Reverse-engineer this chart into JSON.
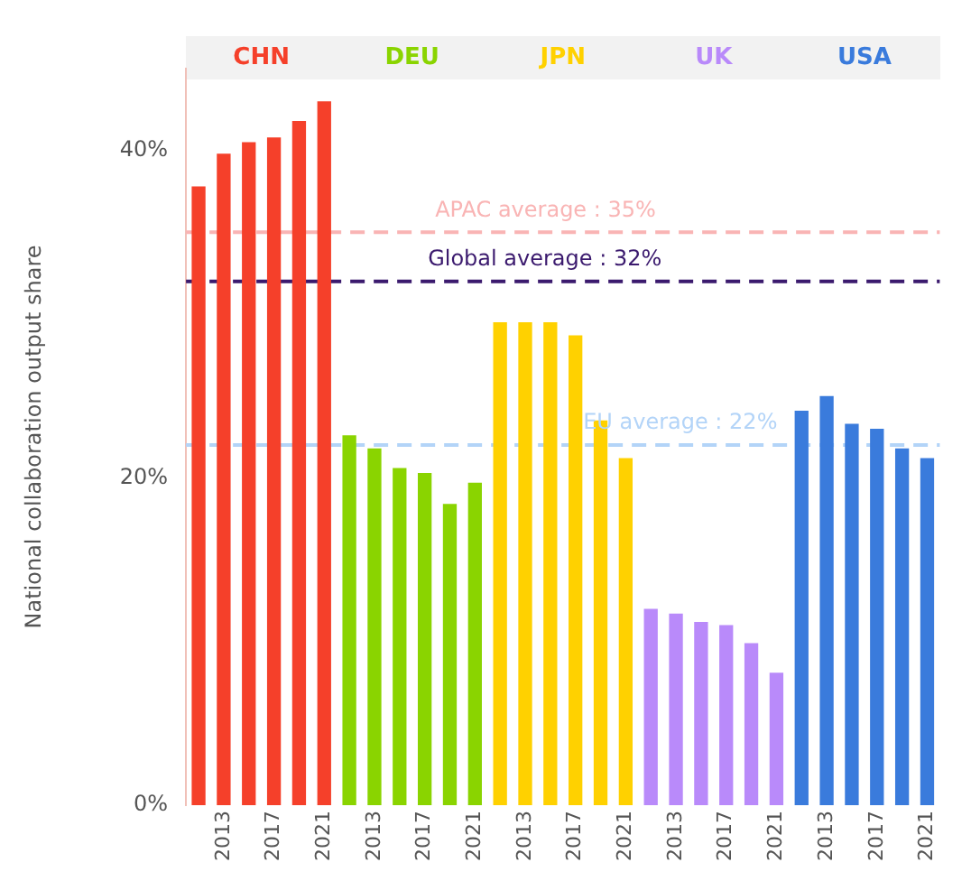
{
  "chart_data": {
    "type": "bar",
    "ylabel": "National collaboration output share",
    "categories": [
      null,
      "2013",
      null,
      "2017",
      null,
      "2021",
      null,
      "2013",
      null,
      "2017",
      null,
      "2021",
      null,
      "2013",
      null,
      "2017",
      null,
      "2021",
      null,
      "2013",
      null,
      "2017",
      null,
      "2021",
      null,
      "2013",
      null,
      "2017",
      null,
      "2021"
    ],
    "series": [
      {
        "name": "CHN",
        "color": "#f5402a",
        "values": [
          37.8,
          39.8,
          40.5,
          40.8,
          41.8,
          43.0,
          null,
          null,
          null,
          null,
          null,
          null,
          null,
          null,
          null,
          null,
          null,
          null,
          null,
          null,
          null,
          null,
          null,
          null,
          null,
          null,
          null,
          null,
          null,
          null
        ]
      },
      {
        "name": "DEU",
        "color": "#8ad400",
        "values": [
          null,
          null,
          null,
          null,
          null,
          null,
          22.6,
          21.8,
          20.6,
          20.3,
          18.4,
          19.7,
          null,
          null,
          null,
          null,
          null,
          null,
          null,
          null,
          null,
          null,
          null,
          null,
          null,
          null,
          null,
          null,
          null,
          null
        ]
      },
      {
        "name": "JPN",
        "color": "#ffd100",
        "values": [
          null,
          null,
          null,
          null,
          null,
          null,
          null,
          null,
          null,
          null,
          null,
          null,
          29.5,
          29.5,
          29.5,
          28.7,
          23.5,
          21.2,
          null,
          null,
          null,
          null,
          null,
          null,
          null,
          null,
          null,
          null,
          null,
          null
        ]
      },
      {
        "name": "UK",
        "color": "#b98afa",
        "values": [
          null,
          null,
          null,
          null,
          null,
          null,
          null,
          null,
          null,
          null,
          null,
          null,
          null,
          null,
          null,
          null,
          null,
          null,
          12.0,
          11.7,
          11.2,
          11.0,
          9.9,
          8.1,
          null,
          null,
          null,
          null,
          null,
          null
        ]
      },
      {
        "name": "USA",
        "color": "#3a7bdc",
        "values": [
          null,
          null,
          null,
          null,
          null,
          null,
          null,
          null,
          null,
          null,
          null,
          null,
          null,
          null,
          null,
          null,
          null,
          null,
          null,
          null,
          null,
          null,
          null,
          null,
          24.1,
          25.0,
          23.3,
          23.0,
          21.8,
          21.2
        ]
      }
    ],
    "ylim": [
      0,
      45
    ],
    "yticks": [
      {
        "value": 0,
        "label": "0%"
      },
      {
        "value": 20,
        "label": "20%"
      },
      {
        "value": 40,
        "label": "40%"
      }
    ],
    "ref_lines": [
      {
        "axis": "y",
        "value": 35,
        "label": "APAC average : 35%",
        "color": "#f9b4b4",
        "line_style": "dashed"
      },
      {
        "axis": "y",
        "value": 32,
        "label": "Global average : 32%",
        "color": "#3b1a6e",
        "line_style": "dashed"
      },
      {
        "axis": "y",
        "value": 22,
        "label": "EU average : 22%",
        "color": "#b3d4f8",
        "line_style": "dashed"
      }
    ],
    "grid": false,
    "legend": false
  }
}
